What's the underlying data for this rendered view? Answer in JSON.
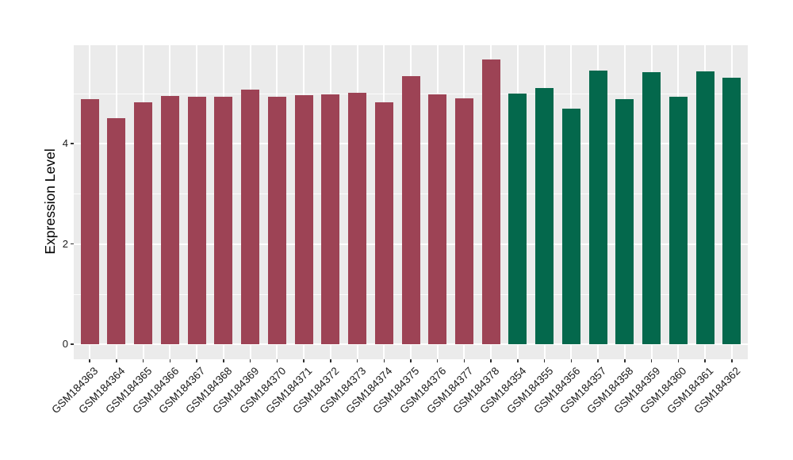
{
  "chart_data": {
    "type": "bar",
    "title": "",
    "xlabel": "",
    "ylabel": "Expression Level",
    "y_ticks": [
      0,
      2,
      4
    ],
    "y_minor_gridlines": [
      1,
      3,
      5
    ],
    "ylim": [
      -0.3,
      5.98
    ],
    "grid": true,
    "legend_position": "none",
    "panel_background": "#EBEBEB",
    "gridline_color": "#FFFFFF",
    "group_colors": {
      "group1": "#9D4355",
      "group2": "#04684C"
    },
    "bars": [
      {
        "label": "GSM184363",
        "value": 4.89,
        "group": "group1"
      },
      {
        "label": "GSM184364",
        "value": 4.5,
        "group": "group1"
      },
      {
        "label": "GSM184365",
        "value": 4.82,
        "group": "group1"
      },
      {
        "label": "GSM184366",
        "value": 4.95,
        "group": "group1"
      },
      {
        "label": "GSM184367",
        "value": 4.94,
        "group": "group1"
      },
      {
        "label": "GSM184368",
        "value": 4.94,
        "group": "group1"
      },
      {
        "label": "GSM184369",
        "value": 5.08,
        "group": "group1"
      },
      {
        "label": "GSM184370",
        "value": 4.93,
        "group": "group1"
      },
      {
        "label": "GSM184371",
        "value": 4.97,
        "group": "group1"
      },
      {
        "label": "GSM184372",
        "value": 4.98,
        "group": "group1"
      },
      {
        "label": "GSM184373",
        "value": 5.02,
        "group": "group1"
      },
      {
        "label": "GSM184374",
        "value": 4.82,
        "group": "group1"
      },
      {
        "label": "GSM184375",
        "value": 5.35,
        "group": "group1"
      },
      {
        "label": "GSM184376",
        "value": 4.98,
        "group": "group1"
      },
      {
        "label": "GSM184377",
        "value": 4.9,
        "group": "group1"
      },
      {
        "label": "GSM184378",
        "value": 5.68,
        "group": "group1"
      },
      {
        "label": "GSM184354",
        "value": 5.0,
        "group": "group2"
      },
      {
        "label": "GSM184355",
        "value": 5.11,
        "group": "group2"
      },
      {
        "label": "GSM184356",
        "value": 4.69,
        "group": "group2"
      },
      {
        "label": "GSM184357",
        "value": 5.45,
        "group": "group2"
      },
      {
        "label": "GSM184358",
        "value": 4.89,
        "group": "group2"
      },
      {
        "label": "GSM184359",
        "value": 5.43,
        "group": "group2"
      },
      {
        "label": "GSM184360",
        "value": 4.93,
        "group": "group2"
      },
      {
        "label": "GSM184361",
        "value": 5.44,
        "group": "group2"
      },
      {
        "label": "GSM184362",
        "value": 5.32,
        "group": "group2"
      }
    ]
  }
}
